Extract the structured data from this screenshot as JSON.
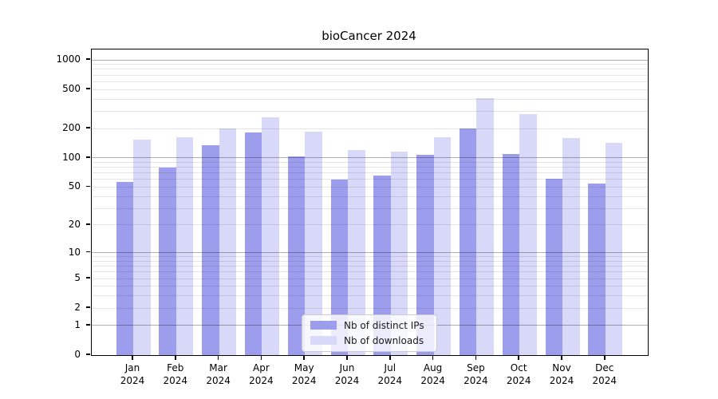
{
  "title": "bioCancer 2024",
  "chart_data": {
    "type": "bar",
    "title": "bioCancer 2024",
    "categories": [
      "Jan",
      "Feb",
      "Mar",
      "Apr",
      "May",
      "Jun",
      "Jul",
      "Aug",
      "Sep",
      "Oct",
      "Nov",
      "Dec"
    ],
    "category_year": "2024",
    "series": [
      {
        "name": "Nb of distinct IPs",
        "color": "#9d9dee",
        "values": [
          56,
          79,
          134,
          181,
          104,
          60,
          66,
          107,
          199,
          110,
          61,
          54
        ]
      },
      {
        "name": "Nb of downloads",
        "color": "#d8d8f9",
        "values": [
          154,
          162,
          199,
          260,
          184,
          121,
          117,
          162,
          405,
          280,
          160,
          143
        ]
      }
    ],
    "yscale": "log1p",
    "ylim": [
      0,
      1275
    ],
    "yticks": [
      0,
      1,
      2,
      5,
      10,
      20,
      50,
      100,
      200,
      500,
      1000
    ],
    "grid": {
      "major": [
        1,
        10,
        100,
        1000
      ],
      "minor": [
        2,
        3,
        4,
        5,
        6,
        7,
        8,
        9,
        20,
        30,
        40,
        50,
        60,
        70,
        80,
        90,
        200,
        300,
        400,
        500,
        600,
        700,
        800,
        900
      ],
      "major_color": "#b0b0b0",
      "minor_color": "#e5e5e5"
    },
    "legend_position": "lower center",
    "xlabel": "",
    "ylabel": ""
  }
}
